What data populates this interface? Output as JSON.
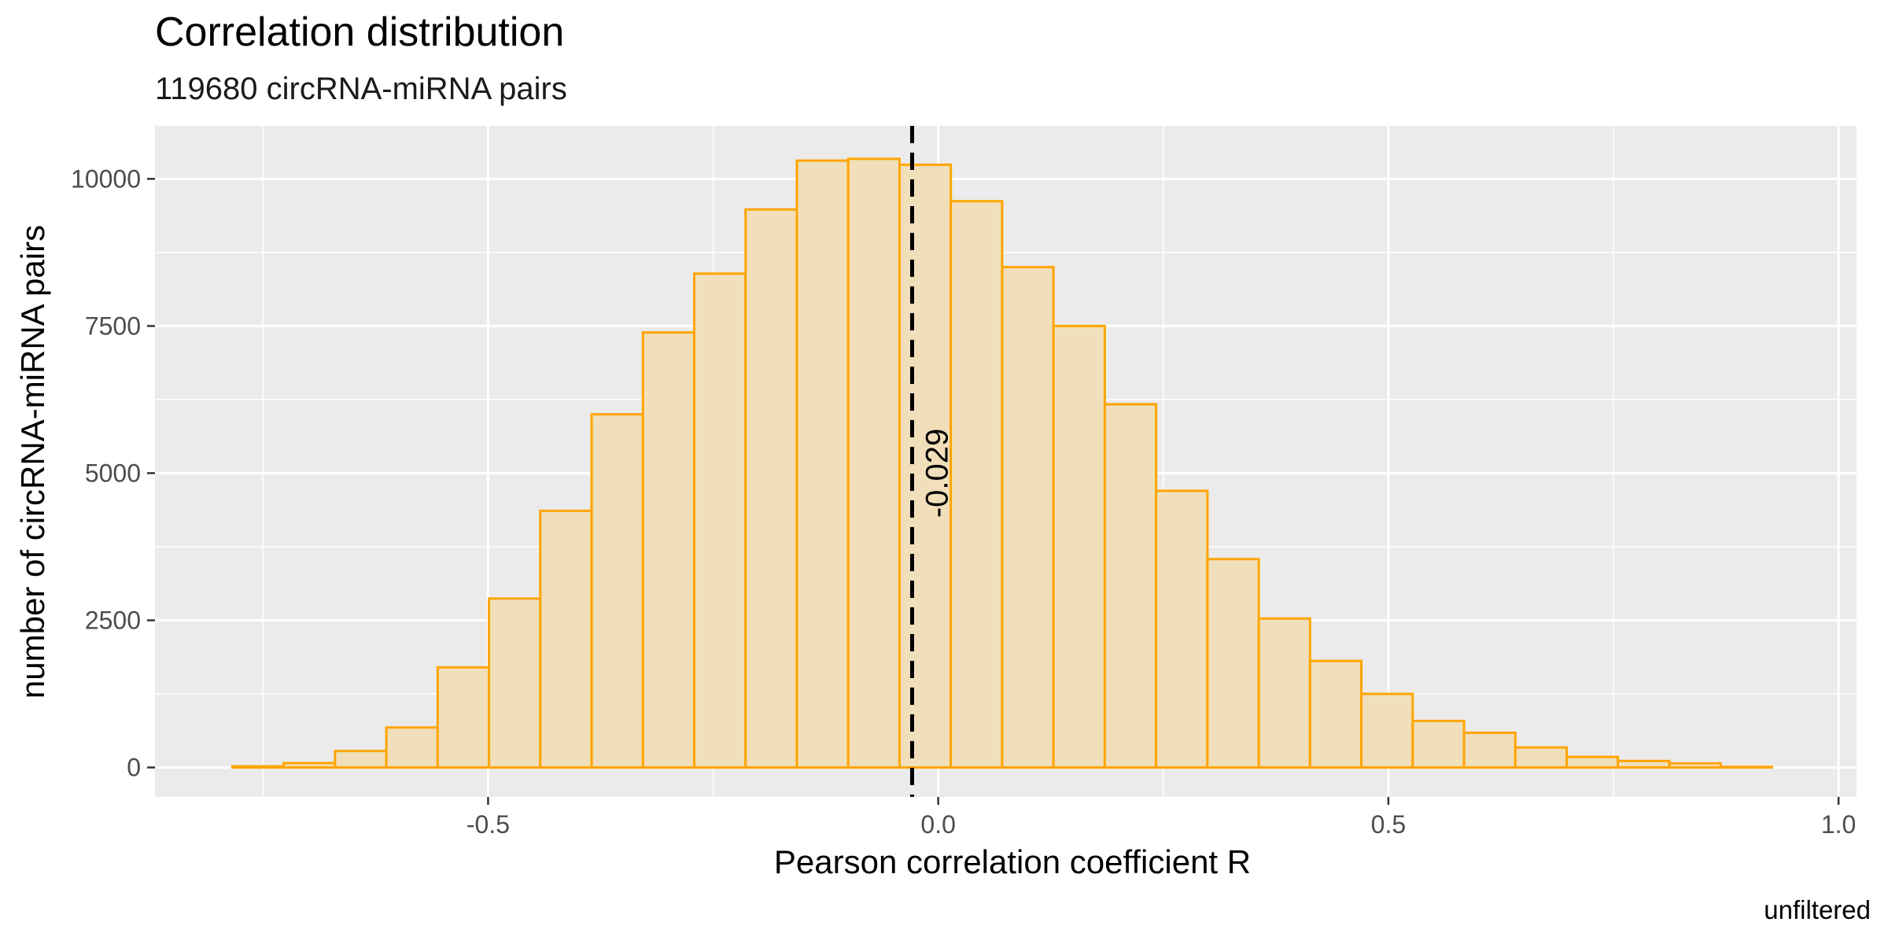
{
  "chart_data": {
    "type": "bar",
    "title": "Correlation distribution",
    "subtitle": "119680 circRNA-miRNA pairs",
    "xlabel": "Pearson correlation coefficient R",
    "ylabel": "number of circRNA-miRNA pairs",
    "caption": "unfiltered",
    "xlim": [
      -0.87,
      1.02
    ],
    "ylim": [
      -500,
      10900
    ],
    "xticks": [
      -0.5,
      0.0,
      0.5,
      1.0
    ],
    "xtick_labels": [
      "-0.5",
      "0.0",
      "0.5",
      "1.0"
    ],
    "yticks": [
      0,
      2500,
      5000,
      7500,
      10000
    ],
    "ytick_labels": [
      "0",
      "2500",
      "5000",
      "7500",
      "10000"
    ],
    "bin_width": 0.057,
    "bin_start": -0.784,
    "values": [
      20,
      75,
      280,
      680,
      1700,
      2870,
      4360,
      6000,
      7390,
      8390,
      9480,
      10310,
      10340,
      10240,
      9620,
      8500,
      7500,
      6170,
      4700,
      3540,
      2530,
      1810,
      1250,
      790,
      590,
      340,
      180,
      110,
      70,
      10
    ],
    "fill_color": "#F0DFBA",
    "stroke_color": "#FFA500",
    "panel_color": "#EBEBEB",
    "grid": true,
    "vline": {
      "x": -0.029,
      "label": "-0.029",
      "style": "dashed",
      "color": "#000000"
    }
  }
}
